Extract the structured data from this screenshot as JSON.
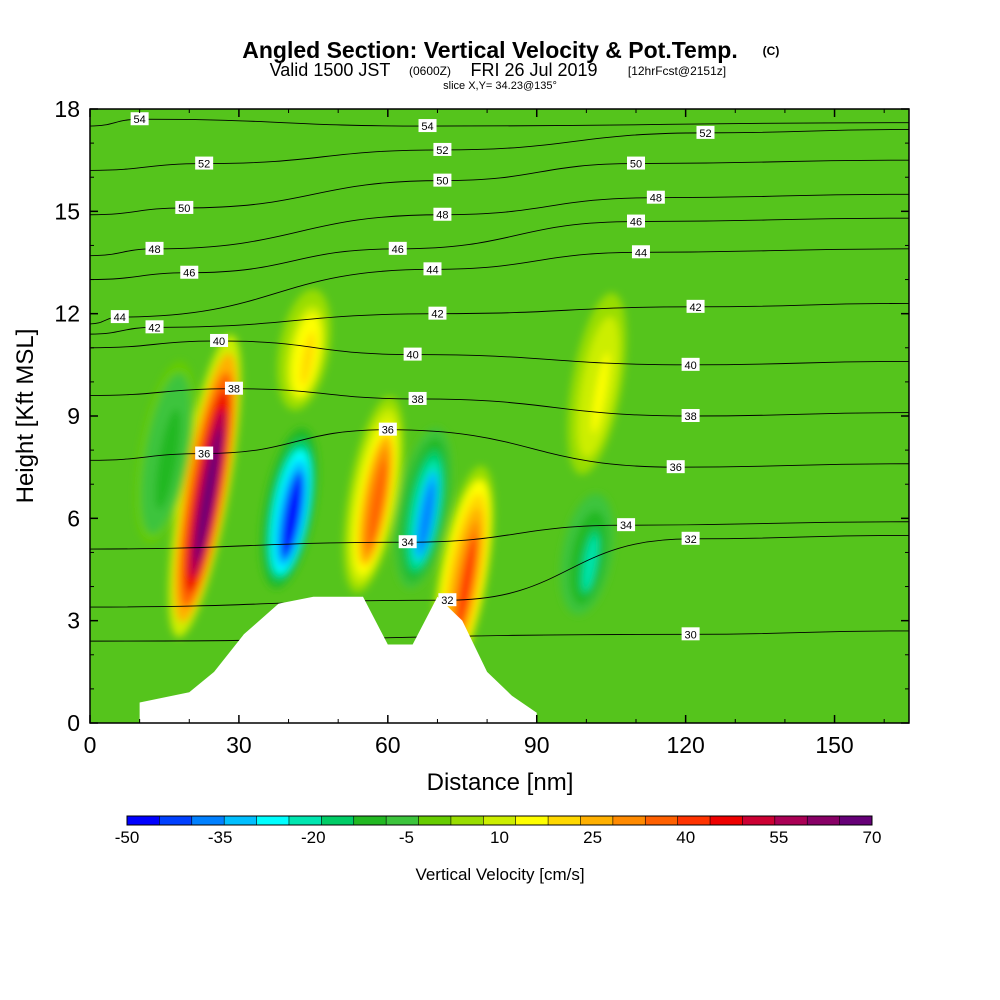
{
  "header": {
    "title_main": "Angled Section: Vertical Velocity & Pot.Temp.",
    "title_mark": "(C)",
    "valid_prefix": "Valid 1500 JST",
    "valid_zulu": "(0600Z)",
    "valid_date": "FRI 26 Jul 2019",
    "valid_fcst": "[12hrFcst@2151z]",
    "slice": "slice X,Y= 34.23@135°"
  },
  "chart_data": {
    "type": "heatmap",
    "xlabel": "Distance [nm]",
    "ylabel": "Height [Kft MSL]",
    "xlim": [
      0,
      165
    ],
    "ylim": [
      0,
      18
    ],
    "x_ticks": [
      "0",
      "30",
      "60",
      "90",
      "120",
      "150"
    ],
    "x_tick_values": [
      0,
      30,
      60,
      90,
      120,
      150
    ],
    "y_ticks": [
      "0",
      "3",
      "6",
      "9",
      "12",
      "15",
      "18"
    ],
    "y_tick_values": [
      0,
      3,
      6,
      9,
      12,
      15,
      18
    ],
    "colorbar": {
      "label": "Vertical Velocity [cm/s]",
      "tick_labels": [
        "-50",
        "-35",
        "-20",
        "-5",
        "10",
        "25",
        "40",
        "55",
        "70"
      ],
      "colors": [
        "#0000ff",
        "#0040ff",
        "#0080ff",
        "#00bfff",
        "#00ffff",
        "#00e6b0",
        "#00cc66",
        "#22b822",
        "#3cc43c",
        "#66cc00",
        "#99dd00",
        "#ccee00",
        "#ffff00",
        "#ffd800",
        "#ffb000",
        "#ff8a00",
        "#ff6000",
        "#ff3300",
        "#ee0000",
        "#cc0033",
        "#aa0055",
        "#880066",
        "#660077"
      ]
    },
    "velocity_features": [
      {
        "name": "updraft",
        "x": 23,
        "z_bottom": 2,
        "z_top": 12,
        "peak_cm_s": 70
      },
      {
        "name": "downdraft",
        "x": 40,
        "z_bottom": 3.7,
        "z_top": 9,
        "peak_cm_s": -50
      },
      {
        "name": "updraft",
        "x": 43,
        "z_bottom": 9,
        "z_top": 13,
        "peak_cm_s": 20
      },
      {
        "name": "updraft",
        "x": 57,
        "z_bottom": 3.5,
        "z_top": 10,
        "peak_cm_s": 35
      },
      {
        "name": "downdraft",
        "x": 67,
        "z_bottom": 3.7,
        "z_top": 9,
        "peak_cm_s": -35
      },
      {
        "name": "updraft",
        "x": 75,
        "z_bottom": 0.8,
        "z_top": 8,
        "peak_cm_s": 40
      },
      {
        "name": "updraft",
        "x": 102,
        "z_bottom": 7,
        "z_top": 13,
        "peak_cm_s": 15
      },
      {
        "name": "downdraft",
        "x": 100,
        "z_bottom": 3,
        "z_top": 7,
        "peak_cm_s": -20
      },
      {
        "name": "downdraft",
        "x": 15,
        "z_bottom": 5,
        "z_top": 11,
        "peak_cm_s": -12
      }
    ],
    "terrain": [
      [
        10,
        0.6
      ],
      [
        20,
        0.9
      ],
      [
        25,
        1.5
      ],
      [
        31,
        2.6
      ],
      [
        38,
        3.5
      ],
      [
        45,
        3.7
      ],
      [
        55,
        3.7
      ],
      [
        60,
        2.3
      ],
      [
        65,
        2.3
      ],
      [
        70,
        3.7
      ],
      [
        75,
        3.0
      ],
      [
        80,
        1.5
      ],
      [
        85,
        0.8
      ],
      [
        90,
        0.3
      ]
    ],
    "theta_contours": [
      {
        "level": "30",
        "label_x": 121,
        "label_z": 2.6
      },
      {
        "level": "32",
        "label_x": 72,
        "label_z": 3.6
      },
      {
        "level": "32",
        "label_x": 121,
        "label_z": 5.4
      },
      {
        "level": "34",
        "label_x": 64,
        "label_z": 5.3
      },
      {
        "level": "34",
        "label_x": 108,
        "label_z": 5.8
      },
      {
        "level": "36",
        "label_x": 23,
        "label_z": 7.9
      },
      {
        "level": "36",
        "label_x": 60,
        "label_z": 8.6
      },
      {
        "level": "36",
        "label_x": 118,
        "label_z": 7.5
      },
      {
        "level": "38",
        "label_x": 29,
        "label_z": 9.8
      },
      {
        "level": "38",
        "label_x": 66,
        "label_z": 9.5
      },
      {
        "level": "38",
        "label_x": 121,
        "label_z": 9.0
      },
      {
        "level": "40",
        "label_x": 26,
        "label_z": 11.2
      },
      {
        "level": "40",
        "label_x": 65,
        "label_z": 10.8
      },
      {
        "level": "40",
        "label_x": 121,
        "label_z": 10.5
      },
      {
        "level": "42",
        "label_x": 13,
        "label_z": 11.6
      },
      {
        "level": "42",
        "label_x": 70,
        "label_z": 12.0
      },
      {
        "level": "42",
        "label_x": 122,
        "label_z": 12.2
      },
      {
        "level": "44",
        "label_x": 6,
        "label_z": 11.9
      },
      {
        "level": "44",
        "label_x": 69,
        "label_z": 13.3
      },
      {
        "level": "44",
        "label_x": 111,
        "label_z": 13.8
      },
      {
        "level": "46",
        "label_x": 20,
        "label_z": 13.2
      },
      {
        "level": "46",
        "label_x": 62,
        "label_z": 13.9
      },
      {
        "level": "46",
        "label_x": 110,
        "label_z": 14.7
      },
      {
        "level": "48",
        "label_x": 13,
        "label_z": 13.9
      },
      {
        "level": "48",
        "label_x": 71,
        "label_z": 14.9
      },
      {
        "level": "48",
        "label_x": 114,
        "label_z": 15.4
      },
      {
        "level": "50",
        "label_x": 19,
        "label_z": 15.1
      },
      {
        "level": "50",
        "label_x": 71,
        "label_z": 15.9
      },
      {
        "level": "50",
        "label_x": 110,
        "label_z": 16.4
      },
      {
        "level": "52",
        "label_x": 23,
        "label_z": 16.4
      },
      {
        "level": "52",
        "label_x": 71,
        "label_z": 16.8
      },
      {
        "level": "52",
        "label_x": 124,
        "label_z": 17.3
      },
      {
        "level": "54",
        "label_x": 10,
        "label_z": 17.7
      },
      {
        "level": "54",
        "label_x": 68,
        "label_z": 17.5
      }
    ]
  }
}
